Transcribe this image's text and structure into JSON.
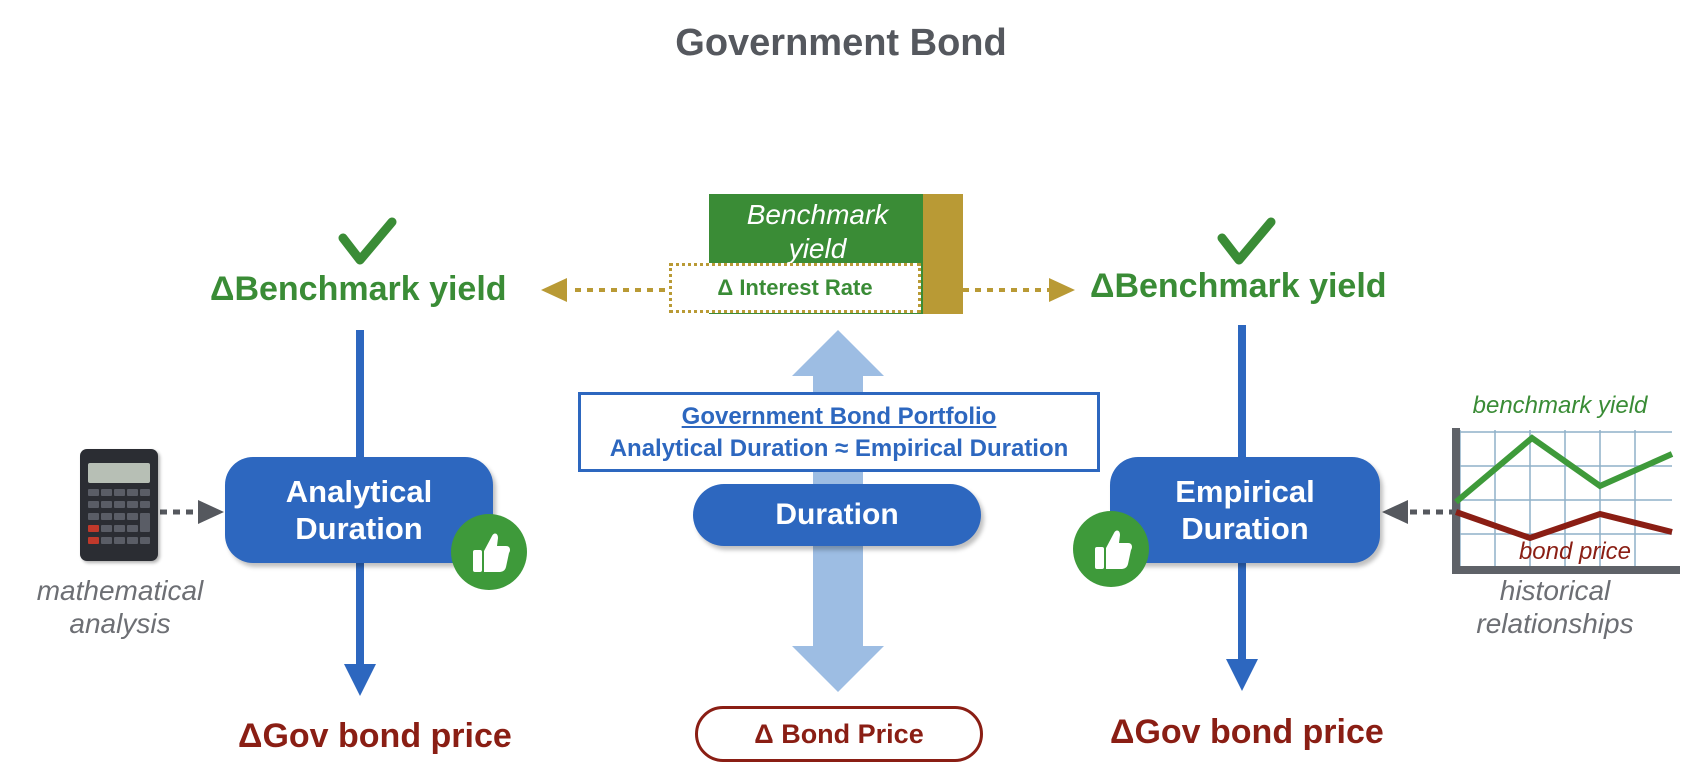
{
  "title": "Government Bond",
  "left": {
    "head": "ΔBenchmark yield",
    "pill": "Analytical Duration",
    "foot": "ΔGov bond price",
    "caption": "mathematical analysis"
  },
  "right": {
    "head": "ΔBenchmark yield",
    "pill": "Empirical Duration",
    "foot": "ΔGov bond price",
    "caption": "historical relationships",
    "chart_labels": {
      "top": "benchmark yield",
      "bottom": "bond price"
    }
  },
  "center": {
    "benchmark": "Benchmark yield",
    "interest_rate": "Δ Interest Rate",
    "portfolio_title": "Government Bond Portfolio",
    "portfolio_sub": "Analytical Duration ≈ Empirical Duration",
    "duration": "Duration",
    "bond_price": "Δ Bond Price"
  },
  "icons": {
    "check": "check-icon",
    "thumb": "thumbs-up-icon",
    "calculator": "calculator-icon",
    "chart": "line-chart-icon"
  },
  "colors": {
    "green": "#3a8c36",
    "blue": "#2d67bf",
    "light_blue": "#9dbde3",
    "dark_red": "#8a1e14",
    "gold": "#b99a35",
    "grey": "#55585e"
  }
}
